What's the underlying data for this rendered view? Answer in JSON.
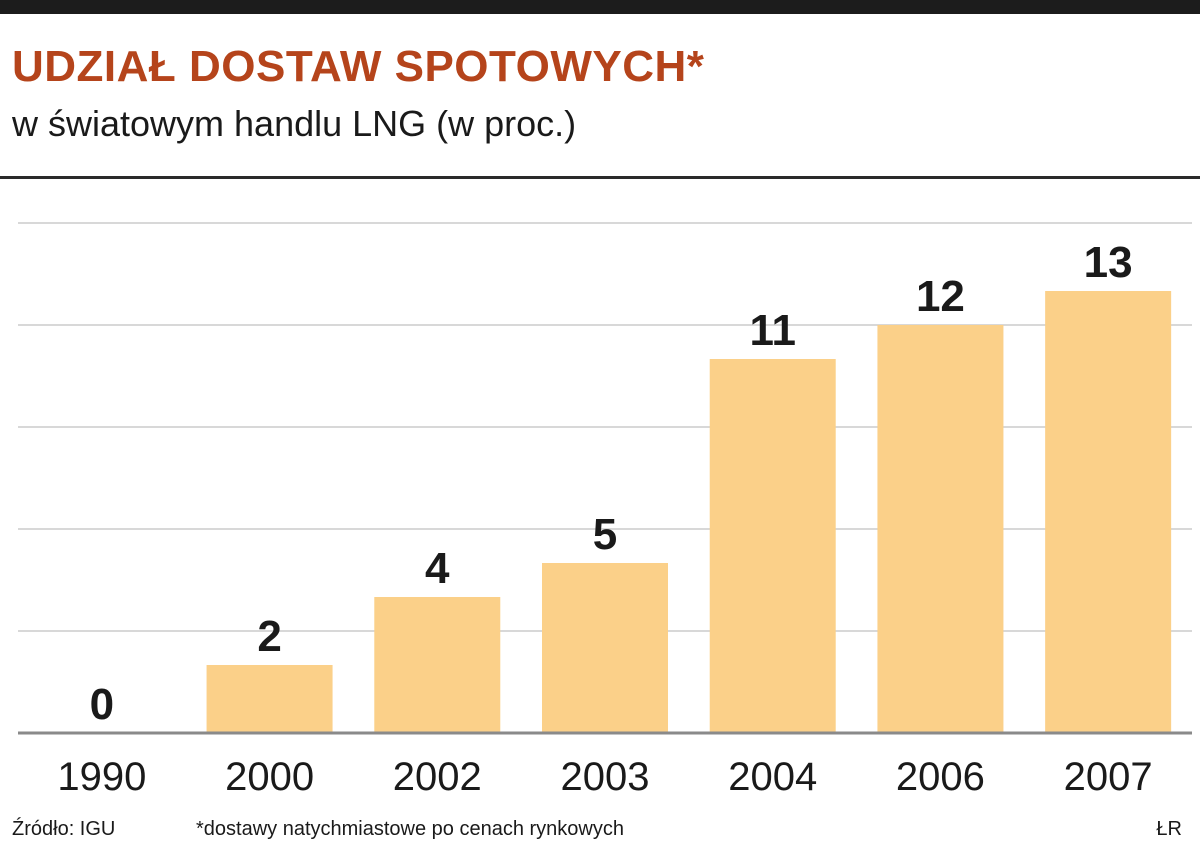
{
  "header": {
    "title": "UDZIAŁ DOSTAW SPOTOWYCH*",
    "subtitle": "w światowym handlu LNG (w proc.)"
  },
  "footer": {
    "source": "Źródło: IGU",
    "note": "*dostawy natychmiastowe po cenach rynkowych",
    "credit": "ŁR"
  },
  "colors": {
    "bar": "#fbd089",
    "grid": "#d8d8d8",
    "baseline": "#8a8a8a",
    "title": "#b5441b",
    "text": "#1a1a1a"
  },
  "chart_data": {
    "type": "bar",
    "title": "UDZIAŁ DOSTAW SPOTOWYCH*",
    "subtitle": "w światowym handlu LNG (w proc.)",
    "categories": [
      "1990",
      "2000",
      "2002",
      "2003",
      "2004",
      "2006",
      "2007"
    ],
    "values": [
      0,
      2,
      4,
      5,
      11,
      12,
      13
    ],
    "ylim": [
      0,
      15
    ],
    "grid": true,
    "data_labels": true
  }
}
